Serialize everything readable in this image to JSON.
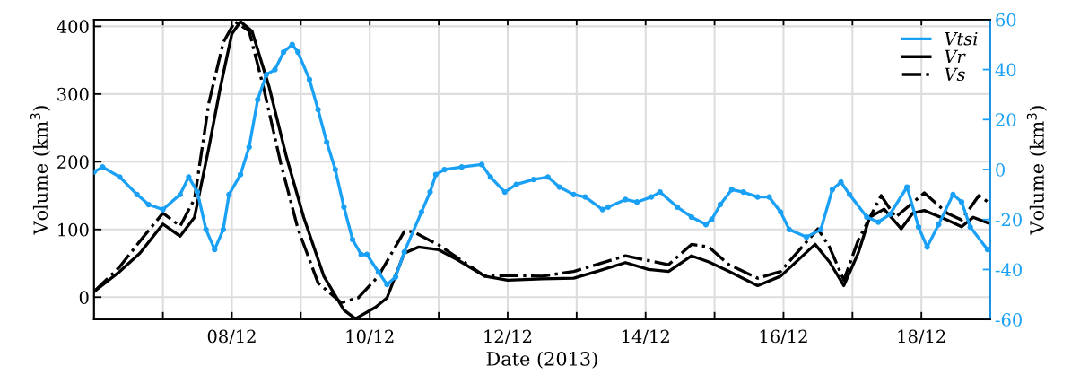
{
  "chart_data": {
    "type": "line",
    "xlabel": "Date (2013)",
    "ylabel": "Volume (km$^{3}$)",
    "y2label": "Volume (km$^{3}$)",
    "xlim": [
      "2013-12-06",
      "2013-12-19"
    ],
    "xticks": [
      {
        "value": "2013-12-07",
        "label": null
      },
      {
        "value": "2013-12-08",
        "label": "08/12"
      },
      {
        "value": "2013-12-09",
        "label": null
      },
      {
        "value": "2013-12-10",
        "label": "10/12"
      },
      {
        "value": "2013-12-11",
        "label": null
      },
      {
        "value": "2013-12-12",
        "label": "12/12"
      },
      {
        "value": "2013-12-13",
        "label": null
      },
      {
        "value": "2013-12-14",
        "label": "14/12"
      },
      {
        "value": "2013-12-15",
        "label": null
      },
      {
        "value": "2013-12-16",
        "label": "16/12"
      },
      {
        "value": "2013-12-17",
        "label": null
      },
      {
        "value": "2013-12-18",
        "label": "18/12"
      }
    ],
    "ylim": [
      -33,
      410
    ],
    "yticks": [
      0,
      100,
      200,
      300,
      400
    ],
    "y2lim": [
      -60,
      60
    ],
    "y2ticks": [
      -60,
      -40,
      -20,
      0,
      20,
      40,
      60
    ],
    "grid": true,
    "legend": "top right",
    "series": [
      {
        "name": "Vtsi",
        "axis": "y2",
        "color": "#1aa0f5",
        "marker": "circle",
        "line_style": "solid",
        "x": [
          "2013-12-06T00:00",
          "2013-12-06T03:00",
          "2013-12-06T09:00",
          "2013-12-06T15:00",
          "2013-12-06T19:00",
          "2013-12-07T00:00",
          "2013-12-07T06:00",
          "2013-12-07T09:00",
          "2013-12-07T12:00",
          "2013-12-07T15:00",
          "2013-12-07T18:00",
          "2013-12-07T21:00",
          "2013-12-07T23:00",
          "2013-12-08T03:00",
          "2013-12-08T06:00",
          "2013-12-08T09:00",
          "2013-12-08T12:00",
          "2013-12-08T15:00",
          "2013-12-08T18:00",
          "2013-12-08T21:00",
          "2013-12-08T23:00",
          "2013-12-09T03:00",
          "2013-12-09T06:00",
          "2013-12-09T09:00",
          "2013-12-09T12:00",
          "2013-12-09T15:00",
          "2013-12-09T18:00",
          "2013-12-09T21:00",
          "2013-12-09T23:00",
          "2013-12-10T03:00",
          "2013-12-10T06:00",
          "2013-12-10T09:00",
          "2013-12-10T12:00",
          "2013-12-10T18:00",
          "2013-12-10T21:00",
          "2013-12-10T23:00",
          "2013-12-11T02:00",
          "2013-12-11T08:00",
          "2013-12-11T15:00",
          "2013-12-11T18:00",
          "2013-12-11T23:00",
          "2013-12-12T03:00",
          "2013-12-12T09:00",
          "2013-12-12T14:00",
          "2013-12-12T18:00",
          "2013-12-12T23:00",
          "2013-12-13T03:00",
          "2013-12-13T09:00",
          "2013-12-13T11:00",
          "2013-12-13T17:00",
          "2013-12-13T21:00",
          "2013-12-14T02:00",
          "2013-12-14T05:00",
          "2013-12-14T11:00",
          "2013-12-14T16:00",
          "2013-12-14T21:00",
          "2013-12-14T23:00",
          "2013-12-15T02:00",
          "2013-12-15T06:00",
          "2013-12-15T10:00",
          "2013-12-15T15:00",
          "2013-12-15T19:00",
          "2013-12-15T23:00",
          "2013-12-16T02:00",
          "2013-12-16T08:00",
          "2013-12-16T13:00",
          "2013-12-16T17:00",
          "2013-12-16T20:00",
          "2013-12-16T23:00",
          "2013-12-17T05:00",
          "2013-12-17T09:00",
          "2013-12-17T13:00",
          "2013-12-17T19:00",
          "2013-12-17T23:00",
          "2013-12-18T02:00",
          "2013-12-18T06:00",
          "2013-12-18T11:00",
          "2013-12-18T14:00",
          "2013-12-18T17:00",
          "2013-12-18T23:00"
        ],
        "values": [
          -1,
          1,
          -3,
          -10,
          -14,
          -16,
          -10,
          -3,
          -9,
          -24,
          -32,
          -24,
          -10,
          -2,
          9,
          28,
          38,
          40,
          47,
          50,
          47,
          36,
          24,
          11,
          0,
          -15,
          -28,
          -34,
          -34,
          -41,
          -46,
          -43,
          -33,
          -17,
          -9,
          -2,
          0,
          1,
          2,
          -3,
          -9,
          -6,
          -4,
          -3,
          -7,
          -10,
          -11,
          -16,
          -15,
          -12,
          -13,
          -11,
          -9,
          -15,
          -19,
          -22,
          -20,
          -14,
          -8,
          -9,
          -11,
          -11,
          -17,
          -24,
          -27,
          -24,
          -8,
          -5,
          -10,
          -19,
          -21,
          -18,
          -7,
          -23,
          -31,
          -22,
          -10,
          -13,
          -23,
          -32
        ]
      },
      {
        "name": "Vr",
        "color": "#000000",
        "marker": "none",
        "line_style": "solid",
        "x": [
          "2013-12-06T00:00",
          "2013-12-06T09:00",
          "2013-12-06T16:00",
          "2013-12-07T00:00",
          "2013-12-07T06:00",
          "2013-12-07T11:00",
          "2013-12-07T16:00",
          "2013-12-07T20:00",
          "2013-12-08T00:00",
          "2013-12-08T03:00",
          "2013-12-08T07:00",
          "2013-12-08T13:00",
          "2013-12-08T19:00",
          "2013-12-09T01:00",
          "2013-12-09T08:00",
          "2013-12-09T15:00",
          "2013-12-09T19:00",
          "2013-12-10T02:00",
          "2013-12-10T06:00",
          "2013-12-10T12:00",
          "2013-12-10T17:00",
          "2013-12-11T00:00",
          "2013-12-11T07:00",
          "2013-12-11T16:00",
          "2013-12-12T00:00",
          "2013-12-12T12:00",
          "2013-12-12T23:00",
          "2013-12-13T07:00",
          "2013-12-13T17:00",
          "2013-12-14T01:00",
          "2013-12-14T08:00",
          "2013-12-14T16:00",
          "2013-12-14T22:00",
          "2013-12-15T05:00",
          "2013-12-15T15:00",
          "2013-12-15T23:00",
          "2013-12-16T11:00",
          "2013-12-16T16:00",
          "2013-12-16T21:00",
          "2013-12-17T02:00",
          "2013-12-17T06:00",
          "2013-12-17T11:00",
          "2013-12-17T17:00",
          "2013-12-17T21:00",
          "2013-12-18T01:00",
          "2013-12-18T09:00",
          "2013-12-18T14:00",
          "2013-12-18T18:00",
          "2013-12-18T23:00"
        ],
        "values": [
          8,
          38,
          65,
          108,
          90,
          118,
          221,
          310,
          389,
          407,
          393,
          310,
          207,
          118,
          31,
          -19,
          -32,
          -15,
          -1,
          65,
          74,
          70,
          54,
          31,
          25,
          27,
          28,
          38,
          51,
          41,
          38,
          61,
          52,
          38,
          17,
          31,
          78,
          52,
          17,
          65,
          118,
          130,
          101,
          124,
          128,
          114,
          104,
          118,
          110
        ]
      },
      {
        "name": "Vs",
        "color": "#000000",
        "marker": "none",
        "line_style": "dashed",
        "x": [
          "2013-12-06T00:00",
          "2013-12-06T09:00",
          "2013-12-06T17:00",
          "2013-12-07T00:00",
          "2013-12-07T06:00",
          "2013-12-07T11:00",
          "2013-12-07T16:00",
          "2013-12-07T21:00",
          "2013-12-08T01:00",
          "2013-12-08T06:00",
          "2013-12-08T11:00",
          "2013-12-08T17:00",
          "2013-12-08T23:00",
          "2013-12-09T06:00",
          "2013-12-09T14:00",
          "2013-12-09T20:00",
          "2013-12-10T03:00",
          "2013-12-10T12:00",
          "2013-12-10T15:00",
          "2013-12-11T00:00",
          "2013-12-11T16:00",
          "2013-12-12T00:00",
          "2013-12-12T12:00",
          "2013-12-12T23:00",
          "2013-12-13T17:00",
          "2013-12-14T08:00",
          "2013-12-14T16:00",
          "2013-12-14T22:00",
          "2013-12-15T05:00",
          "2013-12-15T15:00",
          "2013-12-15T23:00",
          "2013-12-16T12:00",
          "2013-12-16T16:00",
          "2013-12-16T21:00",
          "2013-12-17T02:00",
          "2013-12-17T10:00",
          "2013-12-17T15:00",
          "2013-12-18T01:00",
          "2013-12-18T09:00",
          "2013-12-18T14:00",
          "2013-12-18T20:00",
          "2013-12-18T23:00"
        ],
        "values": [
          8,
          45,
          88,
          124,
          105,
          145,
          287,
          376,
          407,
          393,
          310,
          198,
          101,
          21,
          -8,
          -1,
          31,
          97,
          97,
          77,
          31,
          32,
          31,
          38,
          61,
          48,
          78,
          74,
          48,
          28,
          38,
          101,
          74,
          25,
          84,
          150,
          118,
          154,
          124,
          114,
          150,
          141
        ]
      }
    ]
  }
}
